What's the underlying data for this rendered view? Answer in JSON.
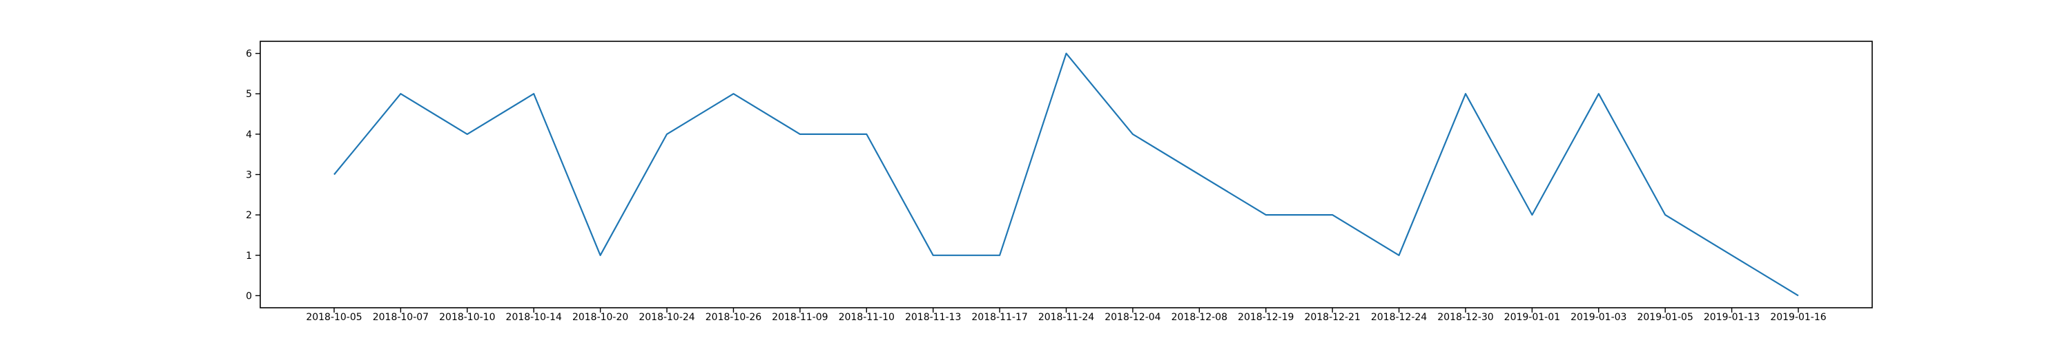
{
  "chart_data": {
    "type": "line",
    "title": "",
    "xlabel": "",
    "ylabel": "",
    "categories": [
      "2018-10-05",
      "2018-10-07",
      "2018-10-10",
      "2018-10-14",
      "2018-10-20",
      "2018-10-24",
      "2018-10-26",
      "2018-11-09",
      "2018-11-10",
      "2018-11-13",
      "2018-11-17",
      "2018-11-24",
      "2018-12-04",
      "2018-12-08",
      "2018-12-19",
      "2018-12-21",
      "2018-12-24",
      "2018-12-30",
      "2019-01-01",
      "2019-01-03",
      "2019-01-05",
      "2019-01-13",
      "2019-01-16"
    ],
    "series": [
      {
        "values": [
          3,
          5,
          4,
          5,
          1,
          4,
          5,
          4,
          4,
          1,
          1,
          6,
          4,
          3,
          2,
          2,
          1,
          5,
          2,
          5,
          2,
          1,
          0
        ],
        "color": "#1f77b4"
      }
    ],
    "ylim": [
      -0.3,
      6.3
    ],
    "yticks": [
      0,
      1,
      2,
      3,
      4,
      5,
      6
    ],
    "grid": false,
    "legend": "none"
  }
}
